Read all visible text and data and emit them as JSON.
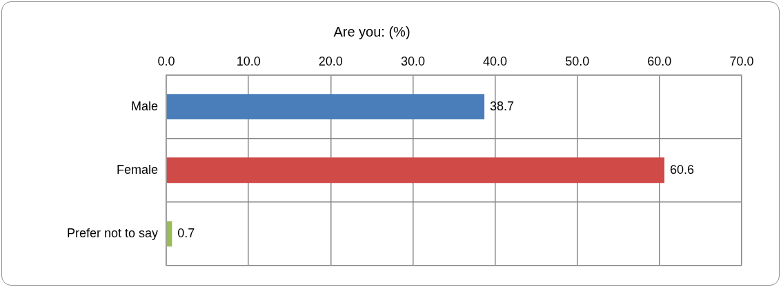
{
  "chart_data": {
    "type": "bar",
    "orientation": "horizontal",
    "title": "Are you: (%)",
    "categories": [
      "Male",
      "Female",
      "Prefer not to say"
    ],
    "values": [
      38.7,
      60.6,
      0.7
    ],
    "colors": [
      "#4a7ebb",
      "#d04a48",
      "#9bbb59"
    ],
    "xlim": [
      0,
      70
    ],
    "xticks": [
      {
        "value": 0,
        "label": "0.0"
      },
      {
        "value": 10,
        "label": "10.0"
      },
      {
        "value": 20,
        "label": "20.0"
      },
      {
        "value": 30,
        "label": "30.0"
      },
      {
        "value": 40,
        "label": "40.0"
      },
      {
        "value": 50,
        "label": "50.0"
      },
      {
        "value": 60,
        "label": "60.0"
      },
      {
        "value": 70,
        "label": "70.0"
      }
    ],
    "grid": true,
    "legend": false,
    "data_labels": true
  }
}
